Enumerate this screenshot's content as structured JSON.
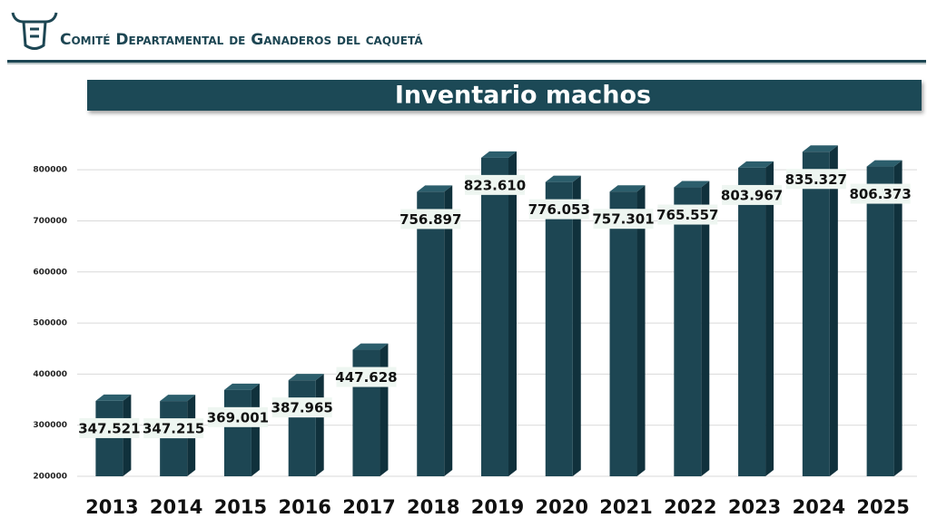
{
  "header": {
    "organization": "Comité Departamental de Ganaderos del caquetá"
  },
  "chart_data": {
    "type": "bar",
    "title": "Inventario machos",
    "categories": [
      "2013",
      "2014",
      "2015",
      "2016",
      "2017",
      "2018",
      "2019",
      "2020",
      "2021",
      "2022",
      "2023",
      "2024",
      "2025"
    ],
    "values": [
      347521,
      347215,
      369001,
      387965,
      447628,
      756897,
      823610,
      776053,
      757301,
      765557,
      803967,
      835327,
      806373
    ],
    "value_labels": [
      "347.521",
      "347.215",
      "369.001",
      "387.965",
      "447.628",
      "756.897",
      "823.610",
      "776.053",
      "757.301",
      "765.557",
      "803.967",
      "835.327",
      "806.373"
    ],
    "color": "#1d4653",
    "ylim": [
      200000,
      850000
    ],
    "yticks": [
      200000,
      300000,
      400000,
      500000,
      600000,
      700000,
      800000
    ],
    "grid": true
  }
}
